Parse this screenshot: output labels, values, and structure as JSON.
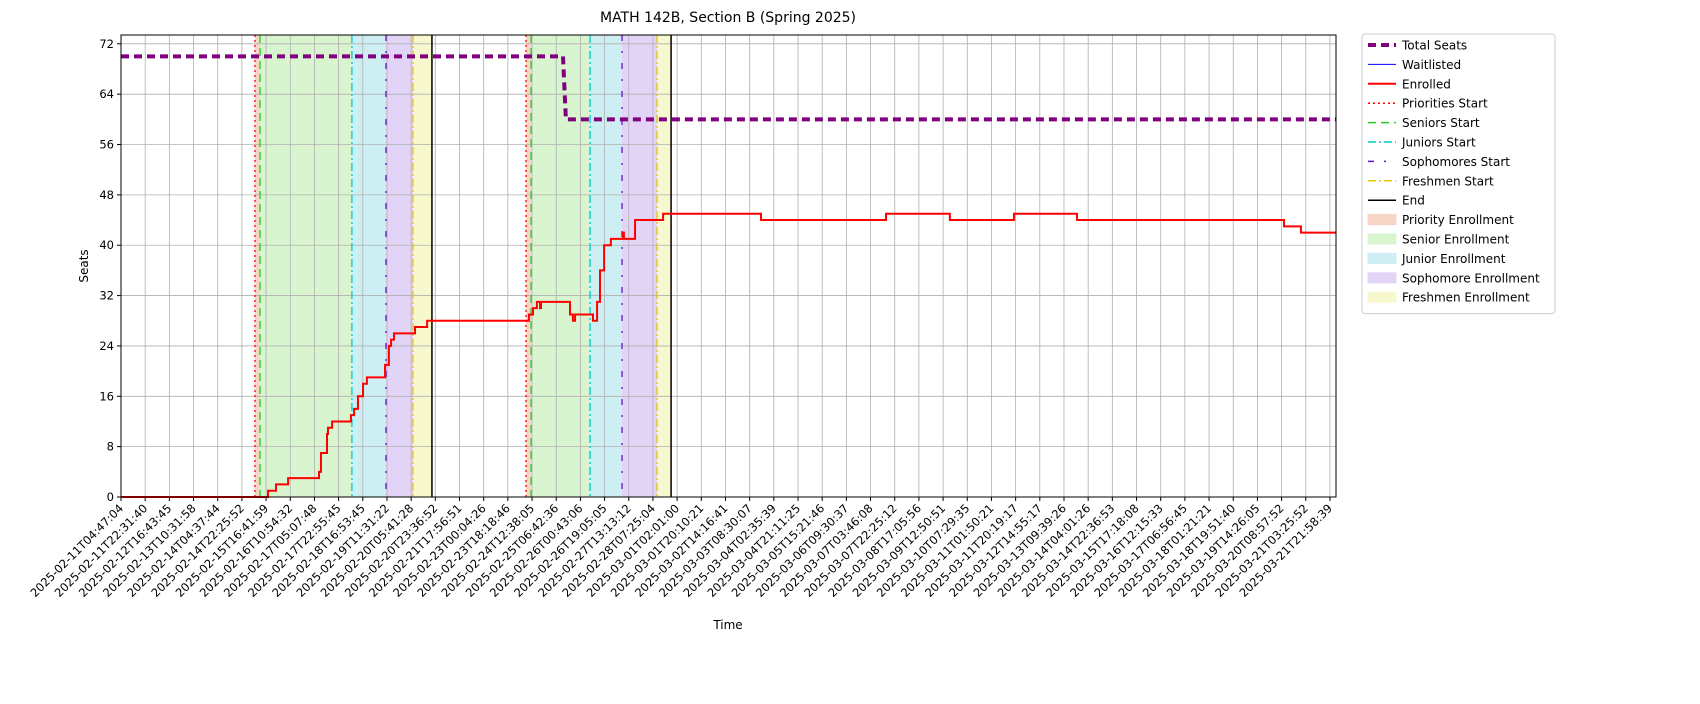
{
  "chart_data": {
    "type": "line",
    "title": "MATH 142B, Section B (Spring 2025)",
    "x_label": "Time",
    "y_label": "Seats",
    "grid": true,
    "legend": "outside upper right",
    "xlim": [
      0,
      50.25
    ],
    "ylim": [
      0,
      73.4
    ],
    "yticks": [
      0,
      8,
      16,
      24,
      32,
      40,
      48,
      56,
      64,
      72
    ],
    "xticks": [
      {
        "value": 0,
        "label": "2025-02-11T04:47:04"
      },
      {
        "value": 1,
        "label": "2025-02-11T22:31:40"
      },
      {
        "value": 2,
        "label": "2025-02-12T16:43:45"
      },
      {
        "value": 3,
        "label": "2025-02-13T10:31:58"
      },
      {
        "value": 4,
        "label": "2025-02-14T04:37:44"
      },
      {
        "value": 5,
        "label": "2025-02-14T22:25:52"
      },
      {
        "value": 6,
        "label": "2025-02-15T16:41:59"
      },
      {
        "value": 7,
        "label": "2025-02-16T10:54:32"
      },
      {
        "value": 8,
        "label": "2025-02-17T05:07:48"
      },
      {
        "value": 9,
        "label": "2025-02-17T22:55:45"
      },
      {
        "value": 10,
        "label": "2025-02-18T16:53:45"
      },
      {
        "value": 11,
        "label": "2025-02-19T11:31:22"
      },
      {
        "value": 12,
        "label": "2025-02-20T05:41:28"
      },
      {
        "value": 13,
        "label": "2025-02-20T23:36:52"
      },
      {
        "value": 14,
        "label": "2025-02-21T17:56:51"
      },
      {
        "value": 15,
        "label": "2025-02-23T00:04:26"
      },
      {
        "value": 16,
        "label": "2025-02-23T18:18:46"
      },
      {
        "value": 17,
        "label": "2025-02-24T12:38:05"
      },
      {
        "value": 18,
        "label": "2025-02-25T06:42:36"
      },
      {
        "value": 19,
        "label": "2025-02-26T00:43:06"
      },
      {
        "value": 20,
        "label": "2025-02-26T19:05:05"
      },
      {
        "value": 21,
        "label": "2025-02-27T13:13:12"
      },
      {
        "value": 22,
        "label": "2025-02-28T07:25:04"
      },
      {
        "value": 23,
        "label": "2025-03-01T02:01:00"
      },
      {
        "value": 24,
        "label": "2025-03-01T20:10:21"
      },
      {
        "value": 25,
        "label": "2025-03-02T14:16:41"
      },
      {
        "value": 26,
        "label": "2025-03-03T08:30:07"
      },
      {
        "value": 27,
        "label": "2025-03-04T02:35:39"
      },
      {
        "value": 28,
        "label": "2025-03-04T21:11:25"
      },
      {
        "value": 29,
        "label": "2025-03-05T15:21:46"
      },
      {
        "value": 30,
        "label": "2025-03-06T09:30:37"
      },
      {
        "value": 31,
        "label": "2025-03-07T03:46:08"
      },
      {
        "value": 32,
        "label": "2025-03-07T22:25:12"
      },
      {
        "value": 33,
        "label": "2025-03-08T17:05:56"
      },
      {
        "value": 34,
        "label": "2025-03-09T12:50:51"
      },
      {
        "value": 35,
        "label": "2025-03-10T07:29:35"
      },
      {
        "value": 36,
        "label": "2025-03-11T01:50:21"
      },
      {
        "value": 37,
        "label": "2025-03-11T20:19:17"
      },
      {
        "value": 38,
        "label": "2025-03-12T14:55:17"
      },
      {
        "value": 39,
        "label": "2025-03-13T09:39:26"
      },
      {
        "value": 40,
        "label": "2025-03-14T04:01:26"
      },
      {
        "value": 41,
        "label": "2025-03-14T22:36:53"
      },
      {
        "value": 42,
        "label": "2025-03-15T17:18:08"
      },
      {
        "value": 43,
        "label": "2025-03-16T12:15:33"
      },
      {
        "value": 44,
        "label": "2025-03-17T06:56:45"
      },
      {
        "value": 45,
        "label": "2025-03-18T01:21:21"
      },
      {
        "value": 46,
        "label": "2025-03-18T19:51:40"
      },
      {
        "value": 47,
        "label": "2025-03-19T14:26:05"
      },
      {
        "value": 48,
        "label": "2025-03-20T08:57:52"
      },
      {
        "value": 49,
        "label": "2025-03-21T03:25:52"
      },
      {
        "value": 50,
        "label": "2025-03-21T21:58:39"
      }
    ],
    "series": [
      {
        "name": "Total Seats",
        "color": "#800080",
        "width": 4,
        "dash": "dashed",
        "step": false,
        "x": [
          0,
          18.28,
          18.4,
          50.25
        ],
        "values": [
          70,
          70,
          60,
          60
        ]
      },
      {
        "name": "Waitlisted",
        "color": "#0000ff",
        "width": 1,
        "dash": "solid",
        "step": true,
        "x": [
          0,
          50.25
        ],
        "values": [
          0,
          0
        ]
      },
      {
        "name": "Enrolled",
        "color": "#ff0000",
        "width": 2,
        "dash": "solid",
        "step": true,
        "x": [
          0,
          6.08,
          6.41,
          6.91,
          8.19,
          8.27,
          8.52,
          8.56,
          8.73,
          9.51,
          9.64,
          9.8,
          10.01,
          10.17,
          10.92,
          11.08,
          11.17,
          11.29,
          12.16,
          12.66,
          16.87,
          17.04,
          17.2,
          17.33,
          17.37,
          18.57,
          18.69,
          18.78,
          19.52,
          19.69,
          19.81,
          19.98,
          20.26,
          20.76,
          20.8,
          21.26,
          22.42,
          26.47,
          31.64,
          34.28,
          36.93,
          39.54,
          48.1,
          48.8,
          50.25
        ],
        "values": [
          0,
          1,
          2,
          3,
          4,
          7,
          10,
          11,
          12,
          13,
          14,
          16,
          18,
          19,
          21,
          24,
          25,
          26,
          27,
          28,
          29,
          30,
          31,
          30,
          31,
          29,
          28,
          29,
          28,
          31,
          36,
          40,
          41,
          42,
          41,
          44,
          45,
          44,
          45,
          44,
          45,
          44,
          43,
          42,
          42
        ]
      }
    ],
    "markers": [
      {
        "name": "Priorities Start",
        "color": "#ff0000",
        "dash": "dotted",
        "x": [
          5.54,
          16.75
        ]
      },
      {
        "name": "Seniors Start",
        "color": "#22cc22",
        "dash": "dashed",
        "x": [
          5.75,
          16.96
        ]
      },
      {
        "name": "Juniors Start",
        "color": "#00c8c8",
        "dash": "dashdot",
        "x": [
          9.55,
          19.4
        ]
      },
      {
        "name": "Sophomores Start",
        "color": "#6a0dd8",
        "dash": "sparsedot",
        "x": [
          10.96,
          20.72
        ]
      },
      {
        "name": "Freshmen Start",
        "color": "#e6c800",
        "dash": "dashdot",
        "x": [
          12.08,
          22.17
        ]
      },
      {
        "name": "End",
        "color": "#000000",
        "dash": "solid",
        "x": [
          12.86,
          22.75
        ]
      }
    ],
    "spans": [
      {
        "name": "Priority Enrollment",
        "color": "#f6d5c6",
        "x": [
          [
            5.54,
            5.75
          ],
          [
            16.75,
            16.96
          ]
        ]
      },
      {
        "name": "Senior Enrollment",
        "color": "#d8f5d0",
        "x": [
          [
            5.75,
            9.55
          ],
          [
            16.96,
            19.4
          ]
        ]
      },
      {
        "name": "Junior Enrollment",
        "color": "#cdeff3",
        "x": [
          [
            9.55,
            10.96
          ],
          [
            19.4,
            20.72
          ]
        ]
      },
      {
        "name": "Sophomore Enrollment",
        "color": "#e2d4f6",
        "x": [
          [
            10.96,
            12.08
          ],
          [
            20.72,
            22.17
          ]
        ]
      },
      {
        "name": "Freshmen Enrollment",
        "color": "#f8f8cf",
        "x": [
          [
            12.08,
            12.86
          ],
          [
            22.17,
            22.75
          ]
        ]
      }
    ]
  }
}
